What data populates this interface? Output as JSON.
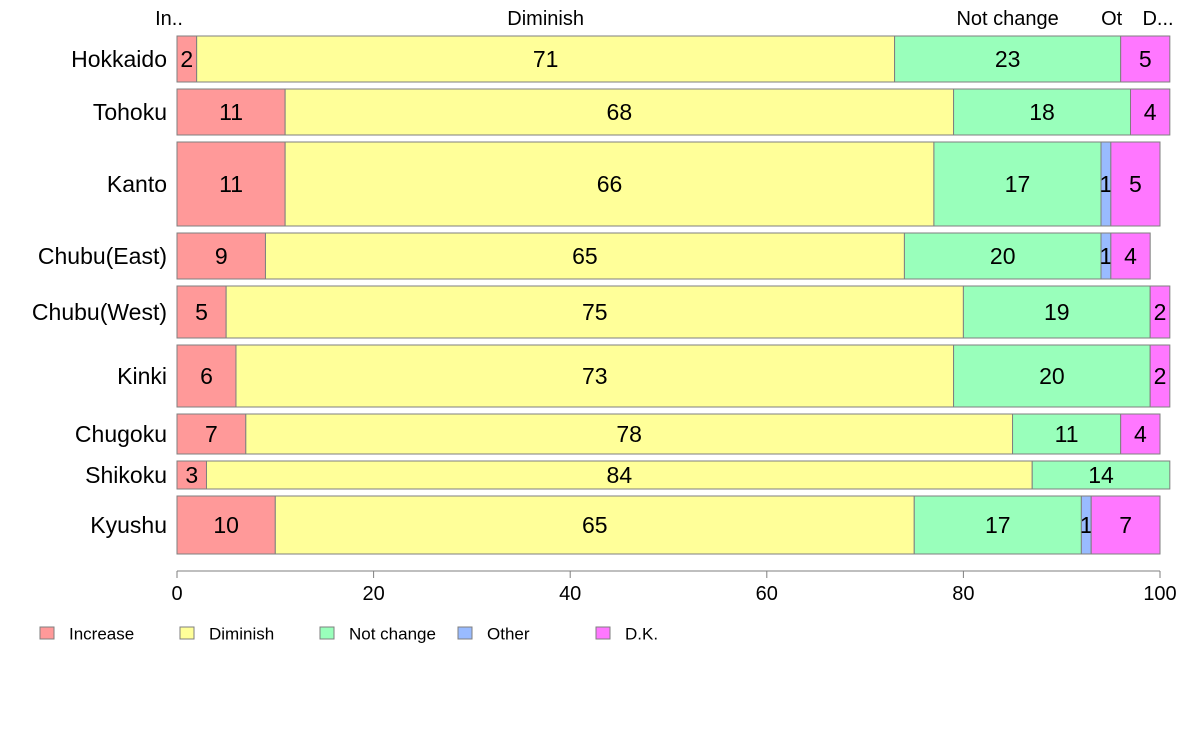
{
  "chart_data": {
    "type": "bar",
    "orientation": "horizontal",
    "stacked": true,
    "normalized_percent": true,
    "categories": [
      "Hokkaido",
      "Tohoku",
      "Kanto",
      "Chubu(East)",
      "Chubu(West)",
      "Kinki",
      "Chugoku",
      "Shikoku",
      "Kyushu"
    ],
    "series": [
      {
        "name": "Increase",
        "color": "#ff9999",
        "values": [
          2,
          11,
          11,
          9,
          5,
          6,
          7,
          3,
          10
        ]
      },
      {
        "name": "Diminish",
        "color": "#ffff99",
        "values": [
          71,
          68,
          66,
          65,
          75,
          73,
          78,
          84,
          65
        ]
      },
      {
        "name": "Not change",
        "color": "#99ffbb",
        "values": [
          23,
          18,
          17,
          20,
          19,
          20,
          11,
          14,
          17
        ]
      },
      {
        "name": "Other",
        "color": "#99bbff",
        "values": [
          0,
          0,
          1,
          1,
          0,
          0,
          0,
          0,
          1
        ]
      },
      {
        "name": "D.K.",
        "color": "#ff77ff",
        "values": [
          5,
          4,
          5,
          4,
          2,
          2,
          4,
          0,
          7
        ]
      }
    ],
    "top_labels": [
      "In..",
      "Diminish",
      "Not change",
      "Ot",
      "D..."
    ],
    "bar_thickness": [
      46,
      46,
      84,
      46,
      52,
      62,
      40,
      28,
      58
    ],
    "xlim": [
      0,
      100
    ],
    "xticks": [
      0,
      20,
      40,
      60,
      80,
      100
    ],
    "grid": false,
    "legend_position": "bottom-left"
  }
}
